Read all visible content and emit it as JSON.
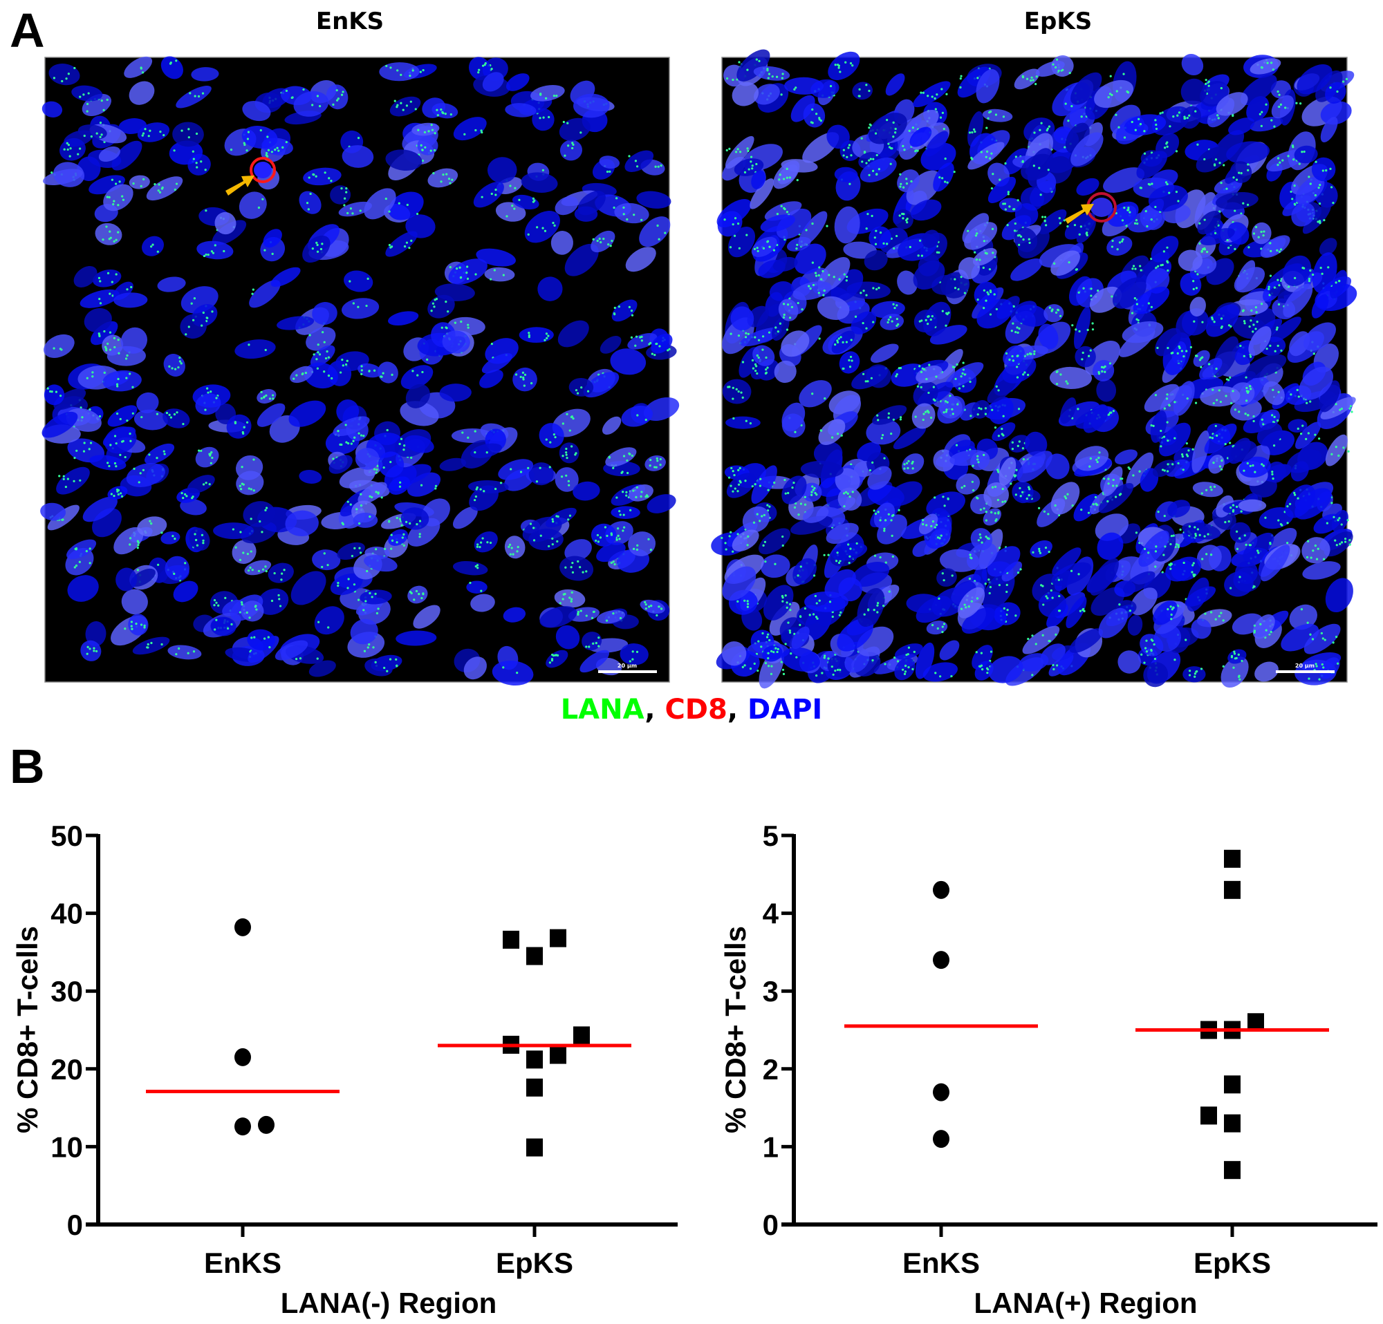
{
  "panel_a": {
    "letter": "A",
    "images": [
      {
        "title": "EnKS",
        "scale_bar": "20 µm",
        "arrow_color": "#F5B800"
      },
      {
        "title": "EpKS",
        "scale_bar": "20 µm",
        "arrow_color": "#F5B800"
      }
    ],
    "stain_legend": [
      {
        "label": "LANA",
        "color": "#00FF00"
      },
      {
        "sep": ", ",
        "color": "#000000"
      },
      {
        "label": "CD8",
        "color": "#FF0000"
      },
      {
        "sep": ", ",
        "color": "#000000"
      },
      {
        "label": "DAPI",
        "color": "#0000FF"
      }
    ]
  },
  "panel_b": {
    "letter": "B"
  },
  "colors": {
    "median_line": "#FF0000",
    "markers": "#000000",
    "nucleus": "#1a1aff",
    "lana_dot": "#33ff99",
    "cd8": "#ff1a1a"
  },
  "chart_data": [
    {
      "type": "scatter",
      "title": "",
      "xlabel": "LANA(-) Region",
      "ylabel": "% CD8+ T-cells",
      "categories": [
        "EnKS",
        "EpKS"
      ],
      "ylim": [
        0,
        50
      ],
      "yticks": [
        0,
        10,
        20,
        30,
        40,
        50
      ],
      "grid": false,
      "series": [
        {
          "name": "EnKS",
          "marker": "circle",
          "values": [
            38.2,
            21.5,
            12.6,
            12.8
          ],
          "offsets": [
            0,
            0,
            0,
            1
          ],
          "median": 17.1
        },
        {
          "name": "EpKS",
          "marker": "square",
          "values": [
            36.6,
            34.5,
            36.8,
            23.1,
            24.3,
            21.2,
            21.8,
            17.6,
            9.9
          ],
          "offsets": [
            -1,
            0,
            1,
            -1,
            2,
            0,
            1,
            0,
            0
          ],
          "median": 23.0
        }
      ]
    },
    {
      "type": "scatter",
      "title": "",
      "xlabel": "LANA(+) Region",
      "ylabel": "% CD8+ T-cells",
      "categories": [
        "EnKS",
        "EpKS"
      ],
      "ylim": [
        0,
        5
      ],
      "yticks": [
        0,
        1,
        2,
        3,
        4,
        5
      ],
      "grid": false,
      "series": [
        {
          "name": "EnKS",
          "marker": "circle",
          "values": [
            4.3,
            3.4,
            1.7,
            1.1
          ],
          "offsets": [
            0,
            0,
            0,
            0
          ],
          "median": 2.55
        },
        {
          "name": "EpKS",
          "marker": "square",
          "values": [
            4.7,
            4.3,
            2.5,
            2.5,
            2.6,
            1.8,
            1.4,
            1.3,
            0.7
          ],
          "offsets": [
            0,
            0,
            -1,
            0,
            1,
            0,
            -1,
            0,
            0
          ],
          "median": 2.5
        }
      ]
    }
  ]
}
